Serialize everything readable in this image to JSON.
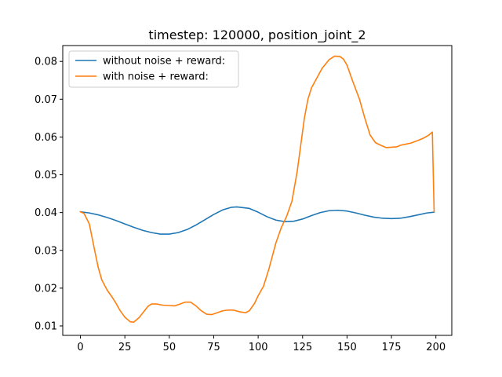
{
  "chart_data": {
    "type": "line",
    "title": "timestep: 120000, position_joint_2",
    "xlabel": "",
    "ylabel": "",
    "xlim": [
      -9.95,
      208.95
    ],
    "ylim": [
      0.0075,
      0.0842
    ],
    "xticks": [
      0,
      25,
      50,
      75,
      100,
      125,
      150,
      175,
      200
    ],
    "yticks": [
      0.01,
      0.02,
      0.03,
      0.04,
      0.05,
      0.06,
      0.07,
      0.08
    ],
    "ytick_labels": [
      "0.01",
      "0.02",
      "0.03",
      "0.04",
      "0.05",
      "0.06",
      "0.07",
      "0.08"
    ],
    "grid": false,
    "legend_position": "top-left",
    "series": [
      {
        "name": "without noise + reward:",
        "color": "#1f77b4",
        "x": [
          0,
          5,
          10,
          15,
          20,
          25,
          30,
          35,
          40,
          45,
          50,
          55,
          60,
          65,
          70,
          75,
          80,
          85,
          88,
          95,
          100,
          105,
          110,
          115,
          120,
          125,
          130,
          135,
          140,
          145,
          150,
          155,
          160,
          165,
          170,
          175,
          180,
          185,
          190,
          195,
          199
        ],
        "y": [
          0.0402,
          0.0399,
          0.0394,
          0.0387,
          0.0379,
          0.037,
          0.0361,
          0.0353,
          0.0347,
          0.0343,
          0.0343,
          0.0347,
          0.0355,
          0.0367,
          0.0381,
          0.0395,
          0.0407,
          0.0414,
          0.0415,
          0.0411,
          0.0401,
          0.0389,
          0.038,
          0.0376,
          0.0377,
          0.0383,
          0.0392,
          0.04,
          0.0405,
          0.0406,
          0.0404,
          0.0399,
          0.0393,
          0.0388,
          0.0385,
          0.0384,
          0.0385,
          0.0389,
          0.0394,
          0.0399,
          0.0401
        ]
      },
      {
        "name": "with noise + reward:",
        "color": "#ff7f0e",
        "x": [
          0,
          2,
          5,
          8,
          10,
          12,
          15,
          18,
          20,
          22,
          25,
          28,
          30,
          33,
          36,
          38,
          40,
          43,
          46,
          50,
          53,
          56,
          59,
          62,
          65,
          68,
          71,
          74,
          77,
          80,
          83,
          86,
          90,
          93,
          95,
          98,
          100,
          103,
          106,
          110,
          113,
          116,
          119,
          122,
          124,
          126,
          128,
          130,
          133,
          136,
          140,
          143,
          146,
          148,
          150,
          153,
          157,
          160,
          163,
          166,
          169,
          172,
          175,
          178,
          180,
          183,
          186,
          190,
          193,
          196,
          198,
          199
        ],
        "y": [
          0.0402,
          0.0398,
          0.037,
          0.03,
          0.0255,
          0.0222,
          0.0195,
          0.0175,
          0.016,
          0.0143,
          0.0123,
          0.0111,
          0.011,
          0.0122,
          0.014,
          0.0152,
          0.0158,
          0.0158,
          0.0155,
          0.0154,
          0.0153,
          0.0158,
          0.0163,
          0.0163,
          0.0153,
          0.014,
          0.0131,
          0.013,
          0.0135,
          0.014,
          0.0142,
          0.0142,
          0.0137,
          0.0135,
          0.014,
          0.016,
          0.018,
          0.0205,
          0.025,
          0.032,
          0.036,
          0.039,
          0.043,
          0.051,
          0.058,
          0.065,
          0.07,
          0.073,
          0.0756,
          0.0782,
          0.0805,
          0.0814,
          0.0813,
          0.0806,
          0.079,
          0.075,
          0.07,
          0.065,
          0.0605,
          0.0585,
          0.0578,
          0.0572,
          0.0573,
          0.0574,
          0.0578,
          0.0581,
          0.0584,
          0.0591,
          0.0597,
          0.0605,
          0.0613,
          0.0402
        ]
      }
    ]
  }
}
